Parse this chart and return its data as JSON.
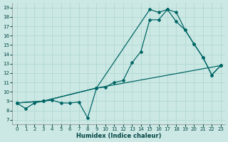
{
  "title": "",
  "xlabel": "Humidex (Indice chaleur)",
  "ylabel": "",
  "bg_color": "#cce8e4",
  "grid_color": "#b0d8d2",
  "line_color": "#006666",
  "xlim": [
    -0.5,
    23.5
  ],
  "ylim": [
    6.5,
    19.5
  ],
  "xticks": [
    0,
    1,
    2,
    3,
    4,
    5,
    6,
    7,
    8,
    9,
    10,
    11,
    12,
    13,
    14,
    15,
    16,
    17,
    18,
    19,
    20,
    21,
    22,
    23
  ],
  "yticks": [
    7,
    8,
    9,
    10,
    11,
    12,
    13,
    14,
    15,
    16,
    17,
    18,
    19
  ],
  "line1_x": [
    0,
    1,
    2,
    3,
    4,
    5,
    6,
    7,
    8,
    9,
    10,
    11,
    12,
    13,
    14,
    15,
    16,
    17,
    18,
    19,
    20,
    21,
    22,
    23
  ],
  "line1_y": [
    8.8,
    8.2,
    8.8,
    9.0,
    9.1,
    8.8,
    8.8,
    8.9,
    7.2,
    10.4,
    10.5,
    11.0,
    11.2,
    13.1,
    14.3,
    17.7,
    17.7,
    18.8,
    18.5,
    16.6,
    15.1,
    13.7,
    11.8,
    12.8
  ],
  "line2_x": [
    0,
    3,
    9,
    15,
    16,
    17,
    18,
    19,
    20,
    21,
    22,
    23
  ],
  "line2_y": [
    8.8,
    9.0,
    10.4,
    18.8,
    18.5,
    18.8,
    17.5,
    16.6,
    15.1,
    13.7,
    11.8,
    12.8
  ],
  "line3_x": [
    0,
    3,
    9,
    23
  ],
  "line3_y": [
    8.8,
    9.0,
    10.4,
    12.8
  ]
}
